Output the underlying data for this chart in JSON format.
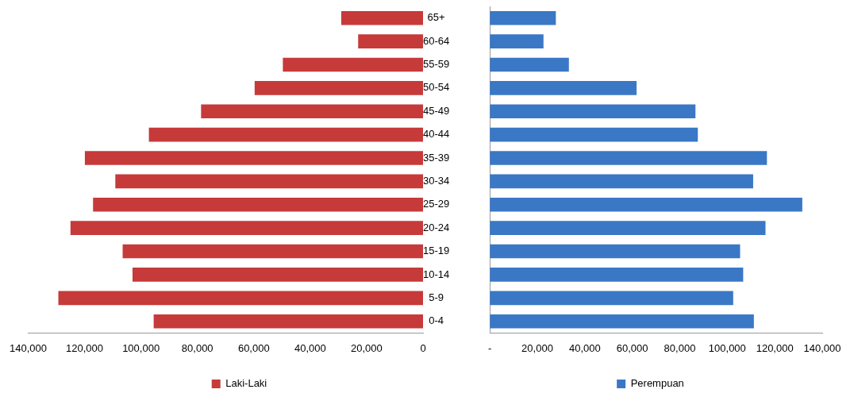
{
  "chart_data": [
    {
      "type": "bar",
      "orientation": "horizontal",
      "categories": [
        "65+",
        "60-64",
        "55-59",
        "50-54",
        "45-49",
        "40-44",
        "35-39",
        "30-34",
        "25-29",
        "20-24",
        "15-19",
        "10-14",
        "5-9",
        "0-4"
      ],
      "series": [
        {
          "name": "Laki-Laki",
          "color": "#c63a3a",
          "values": [
            29000,
            23000,
            49700,
            59700,
            78700,
            97200,
            119900,
            109100,
            117000,
            125000,
            106500,
            103000,
            129300,
            95500
          ]
        }
      ],
      "xlim": [
        140000,
        0
      ],
      "xticks": [
        {
          "value": 140000,
          "label": "140,000"
        },
        {
          "value": 120000,
          "label": "120,000"
        },
        {
          "value": 100000,
          "label": "100,000"
        },
        {
          "value": 80000,
          "label": "80,000"
        },
        {
          "value": 60000,
          "label": "60,000"
        },
        {
          "value": 40000,
          "label": "40,000"
        },
        {
          "value": 20000,
          "label": "20,000"
        },
        0
      ],
      "grid": false,
      "legend": "bottom"
    },
    {
      "type": "bar",
      "orientation": "horizontal",
      "categories": [
        null,
        null,
        null,
        null,
        null,
        null,
        null,
        null,
        null,
        null,
        null,
        null,
        null,
        null
      ],
      "series": [
        {
          "name": "Perempuan",
          "color": "#3a78c6",
          "values": [
            27800,
            22600,
            33300,
            61800,
            86600,
            87600,
            116700,
            110900,
            131600,
            116100,
            105400,
            106700,
            102500,
            111200
          ]
        }
      ],
      "xlim": [
        0,
        140000
      ],
      "xticks": [
        {
          "value": 0,
          "label": "-"
        },
        {
          "value": 20000,
          "label": "20,000"
        },
        {
          "value": 40000,
          "label": "40,000"
        },
        {
          "value": 60000,
          "label": "60,000"
        },
        {
          "value": 80000,
          "label": "80,000"
        },
        {
          "value": 100000,
          "label": "100,000"
        },
        {
          "value": 120000,
          "label": "120,000"
        },
        {
          "value": 140000,
          "label": "140,000"
        }
      ],
      "tick_labels": "x",
      "grid": false,
      "legend": "bottom"
    }
  ]
}
